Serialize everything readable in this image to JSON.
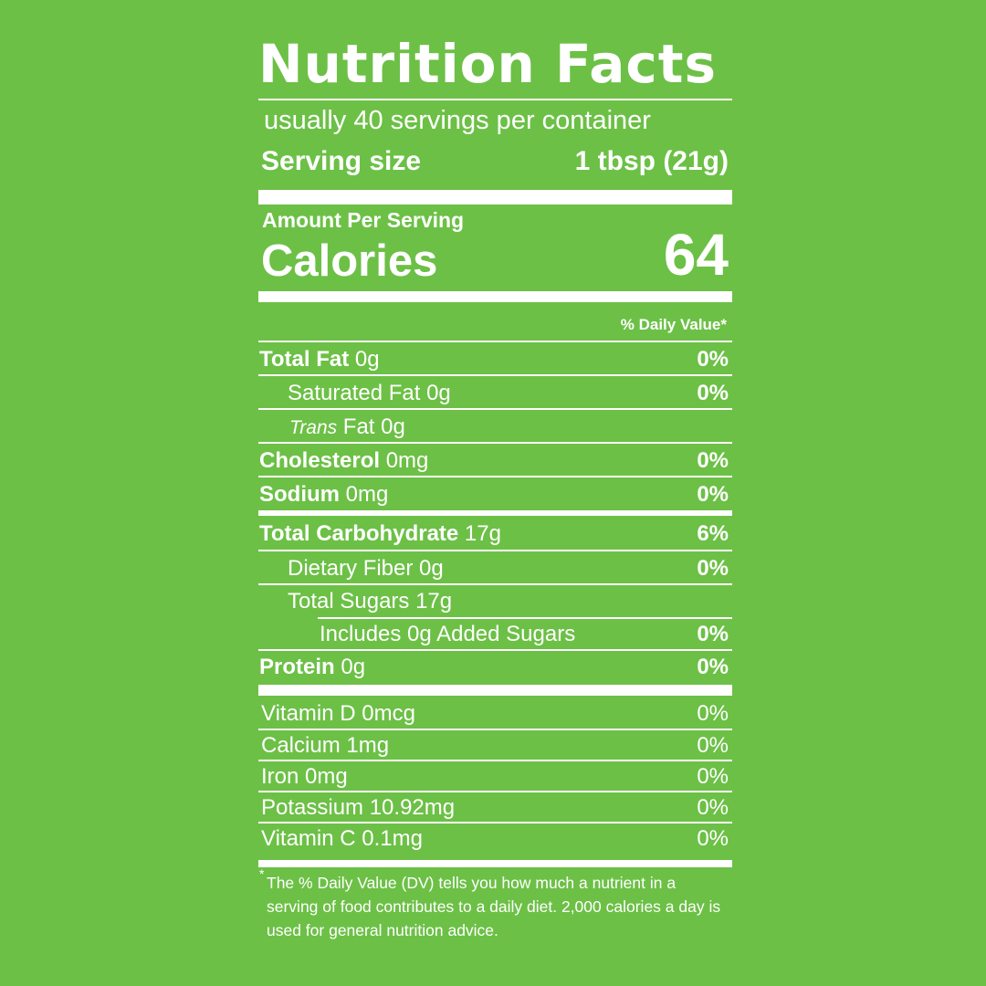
{
  "label": {
    "title": "Nutrition Facts",
    "servings_per_container": "usually 40 servings per container",
    "serving_size_label": "Serving size",
    "serving_size_value": "1 tbsp (21g)",
    "amount_per_serving": "Amount Per Serving",
    "calories_label": "Calories",
    "calories_value": "64",
    "dv_header": "% Daily Value*"
  },
  "nutrients": [
    {
      "name": "Total Fat",
      "amount": " 0g",
      "dv": "0%"
    },
    {
      "name": "Saturated Fat 0g",
      "amount": "",
      "dv": "0%"
    },
    {
      "prefix": "Trans",
      "name": " Fat 0g",
      "amount": "",
      "dv": ""
    },
    {
      "name": "Cholesterol",
      "amount": " 0mg",
      "dv": "0%"
    },
    {
      "name": "Sodium",
      "amount": " 0mg",
      "dv": "0%"
    },
    {
      "name": "Total Carbohydrate",
      "amount": " 17g",
      "dv": "6%"
    },
    {
      "name": "Dietary Fiber 0g",
      "amount": "",
      "dv": "0%"
    },
    {
      "name": "Total Sugars 17g",
      "amount": "",
      "dv": ""
    },
    {
      "name": "Includes 0g Added Sugars",
      "amount": "",
      "dv": "0%"
    },
    {
      "name": "Protein",
      "amount": " 0g",
      "dv": "0%"
    }
  ],
  "vitamins": [
    {
      "name": "Vitamin D 0mcg",
      "dv": "0%"
    },
    {
      "name": "Calcium 1mg",
      "dv": "0%"
    },
    {
      "name": "Iron 0mg",
      "dv": "0%"
    },
    {
      "name": "Potassium 10.92mg",
      "dv": "0%"
    },
    {
      "name": "Vitamin C 0.1mg",
      "dv": "0%"
    }
  ],
  "footnote": {
    "star": "*",
    "text": "The % Daily Value (DV) tells you how much a nutrient in a serving of food contributes to a daily diet. 2,000 calories a day is used for general nutrition advice."
  },
  "colors": {
    "background": "#6cc046",
    "foreground": "#ffffff"
  }
}
